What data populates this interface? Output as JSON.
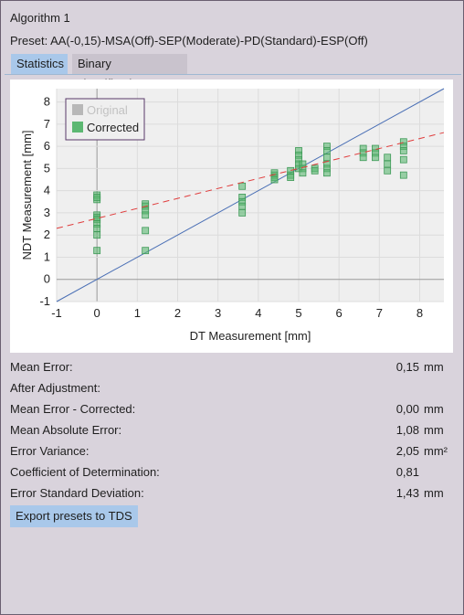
{
  "window": {
    "title": "Algorithm 1",
    "preset": "Preset: AA(-0,15)-MSA(Off)-SEP(Moderate)-PD(Standard)-ESP(Off)"
  },
  "tabs": [
    {
      "label": "Statistics",
      "active": true
    },
    {
      "label": "Binary classification",
      "active": false
    }
  ],
  "chart_data": {
    "type": "scatter",
    "xlabel": "DT Measurement [mm]",
    "ylabel": "NDT Measurement [mm]",
    "xlim": [
      -1,
      8.6
    ],
    "ylim": [
      -1,
      8.6
    ],
    "xticks": [
      "-1",
      "0",
      "1",
      "2",
      "3",
      "4",
      "5",
      "6",
      "7",
      "8"
    ],
    "yticks": [
      "-1",
      "0",
      "1",
      "2",
      "3",
      "4",
      "5",
      "6",
      "7",
      "8"
    ],
    "grid": true,
    "legend_position": "top-left",
    "series": [
      {
        "name": "Original",
        "color": "#b8b8b8",
        "visible": false,
        "points": []
      },
      {
        "name": "Corrected",
        "color": "#5cb872",
        "points": [
          [
            0,
            3.8
          ],
          [
            0,
            3.6
          ],
          [
            0,
            3.7
          ],
          [
            0,
            2.9
          ],
          [
            0,
            2.8
          ],
          [
            0,
            2.7
          ],
          [
            0,
            2.5
          ],
          [
            0,
            2.3
          ],
          [
            0,
            2.0
          ],
          [
            0,
            1.3
          ],
          [
            1.2,
            3.4
          ],
          [
            1.2,
            3.3
          ],
          [
            1.2,
            3.1
          ],
          [
            1.2,
            2.9
          ],
          [
            1.2,
            2.2
          ],
          [
            1.2,
            1.3
          ],
          [
            3.6,
            4.2
          ],
          [
            3.6,
            3.7
          ],
          [
            3.6,
            3.5
          ],
          [
            3.6,
            3.3
          ],
          [
            3.6,
            3.0
          ],
          [
            4.4,
            4.8
          ],
          [
            4.4,
            4.7
          ],
          [
            4.4,
            4.6
          ],
          [
            4.4,
            4.5
          ],
          [
            4.8,
            4.9
          ],
          [
            4.8,
            4.7
          ],
          [
            4.8,
            4.6
          ],
          [
            5.0,
            5.8
          ],
          [
            5.0,
            5.6
          ],
          [
            5.0,
            5.4
          ],
          [
            5.0,
            5.2
          ],
          [
            5.0,
            5.0
          ],
          [
            5.1,
            5.2
          ],
          [
            5.1,
            5.0
          ],
          [
            5.1,
            4.8
          ],
          [
            5.4,
            5.0
          ],
          [
            5.4,
            4.9
          ],
          [
            5.7,
            6.0
          ],
          [
            5.7,
            5.8
          ],
          [
            5.7,
            5.5
          ],
          [
            5.7,
            5.2
          ],
          [
            5.7,
            5.0
          ],
          [
            5.7,
            4.8
          ],
          [
            6.6,
            5.9
          ],
          [
            6.6,
            5.7
          ],
          [
            6.6,
            5.5
          ],
          [
            6.9,
            5.9
          ],
          [
            6.9,
            5.7
          ],
          [
            6.9,
            5.5
          ],
          [
            7.2,
            5.5
          ],
          [
            7.2,
            5.2
          ],
          [
            7.2,
            4.9
          ],
          [
            7.6,
            6.2
          ],
          [
            7.6,
            6.0
          ],
          [
            7.6,
            5.8
          ],
          [
            7.6,
            5.4
          ],
          [
            7.6,
            4.7
          ]
        ]
      }
    ],
    "identity_line": {
      "color": "#4a6fb5"
    },
    "trend_line": {
      "slope": 0.45,
      "intercept": 2.75,
      "color": "#e03c3c",
      "dashed": true
    }
  },
  "stats": [
    {
      "label": "Mean Error:",
      "value": "0,15",
      "unit": "mm"
    },
    {
      "label": "After Adjustment:",
      "value": "",
      "unit": ""
    },
    {
      "label": "Mean Error - Corrected:",
      "value": "0,00",
      "unit": "mm"
    },
    {
      "label": "Mean Absolute Error:",
      "value": "1,08",
      "unit": "mm"
    },
    {
      "label": "Error Variance:",
      "value": "2,05",
      "unit": "mm²"
    },
    {
      "label": "Coefficient of Determination:",
      "value": "0,81",
      "unit": ""
    },
    {
      "label": "Error Standard Deviation:",
      "value": "1,43",
      "unit": "mm"
    }
  ],
  "export_button": "Export presets to TDS"
}
